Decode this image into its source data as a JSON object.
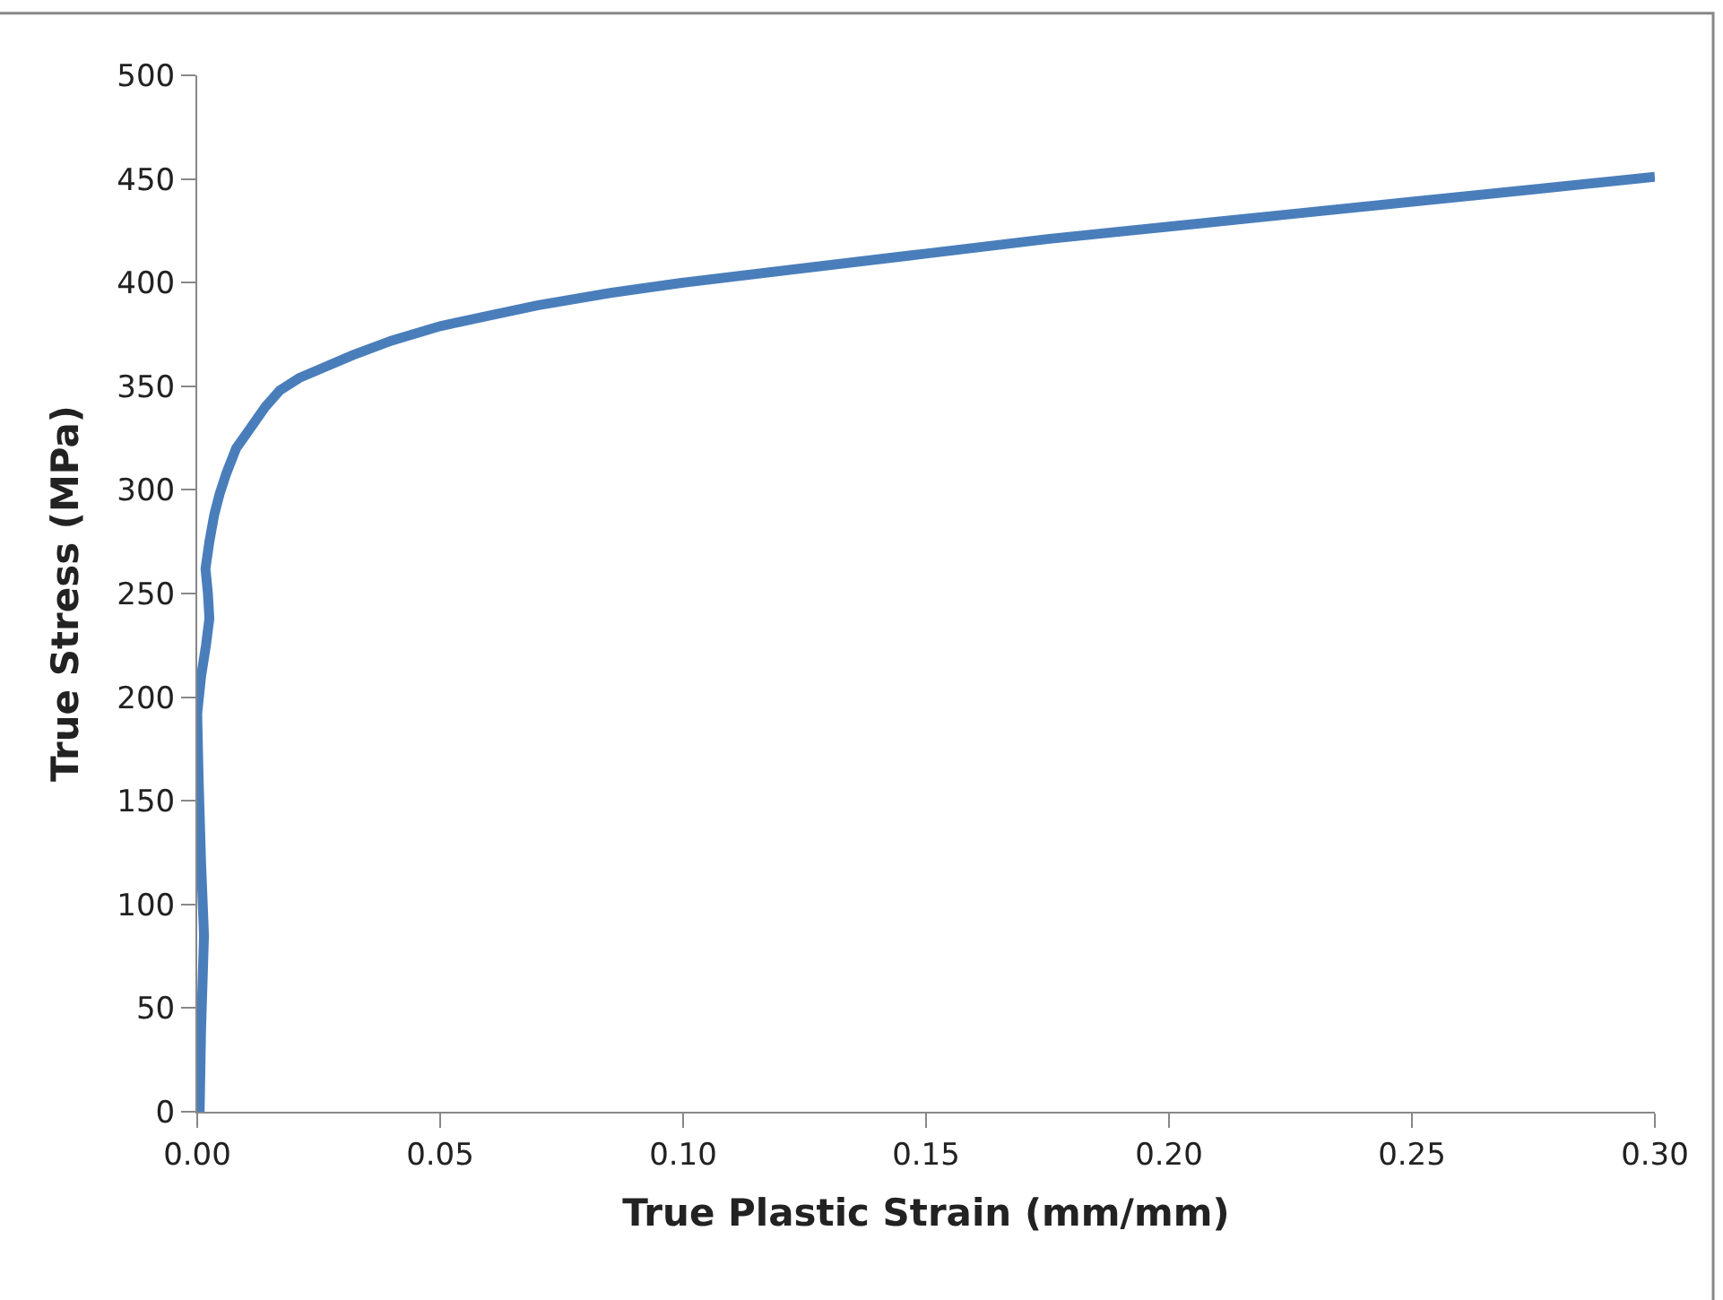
{
  "chart_data": {
    "type": "line",
    "xlabel": "True Plastic Strain (mm/mm)",
    "ylabel": "True Stress (MPa)",
    "series": [
      {
        "color": "#4a7ebb",
        "x": [
          0.0005,
          0.0008,
          0.0014,
          0.0008,
          0.0003,
          0.0,
          0.0008,
          0.0018,
          0.0025,
          0.0022,
          0.0017,
          0.0025,
          0.0035,
          0.0046,
          0.006,
          0.008,
          0.011,
          0.014,
          0.017,
          0.021,
          0.026,
          0.032,
          0.04,
          0.05,
          0.06,
          0.07,
          0.085,
          0.1,
          0.125,
          0.15,
          0.175,
          0.2,
          0.225,
          0.25,
          0.275,
          0.3
        ],
        "values": [
          0,
          40,
          85,
          120,
          160,
          192,
          210,
          225,
          238,
          250,
          262,
          275,
          288,
          298,
          308,
          320,
          330,
          340,
          348,
          354,
          359,
          365,
          372,
          379,
          384,
          389,
          395,
          400,
          407,
          414,
          421,
          427,
          433,
          439,
          445,
          451
        ]
      }
    ],
    "xlim": [
      0,
      0.3
    ],
    "xticks": [
      {
        "value": 0,
        "label": "0.00"
      },
      0.05,
      {
        "value": 0.1,
        "label": "0.10"
      },
      0.15,
      {
        "value": 0.2,
        "label": "0.20"
      },
      0.25,
      {
        "value": 0.3,
        "label": "0.30"
      }
    ],
    "ylim": [
      0,
      500
    ],
    "yticks": [
      0,
      50,
      100,
      150,
      200,
      250,
      300,
      350,
      400,
      450,
      500
    ],
    "marker": "none",
    "line_style": "solid"
  }
}
